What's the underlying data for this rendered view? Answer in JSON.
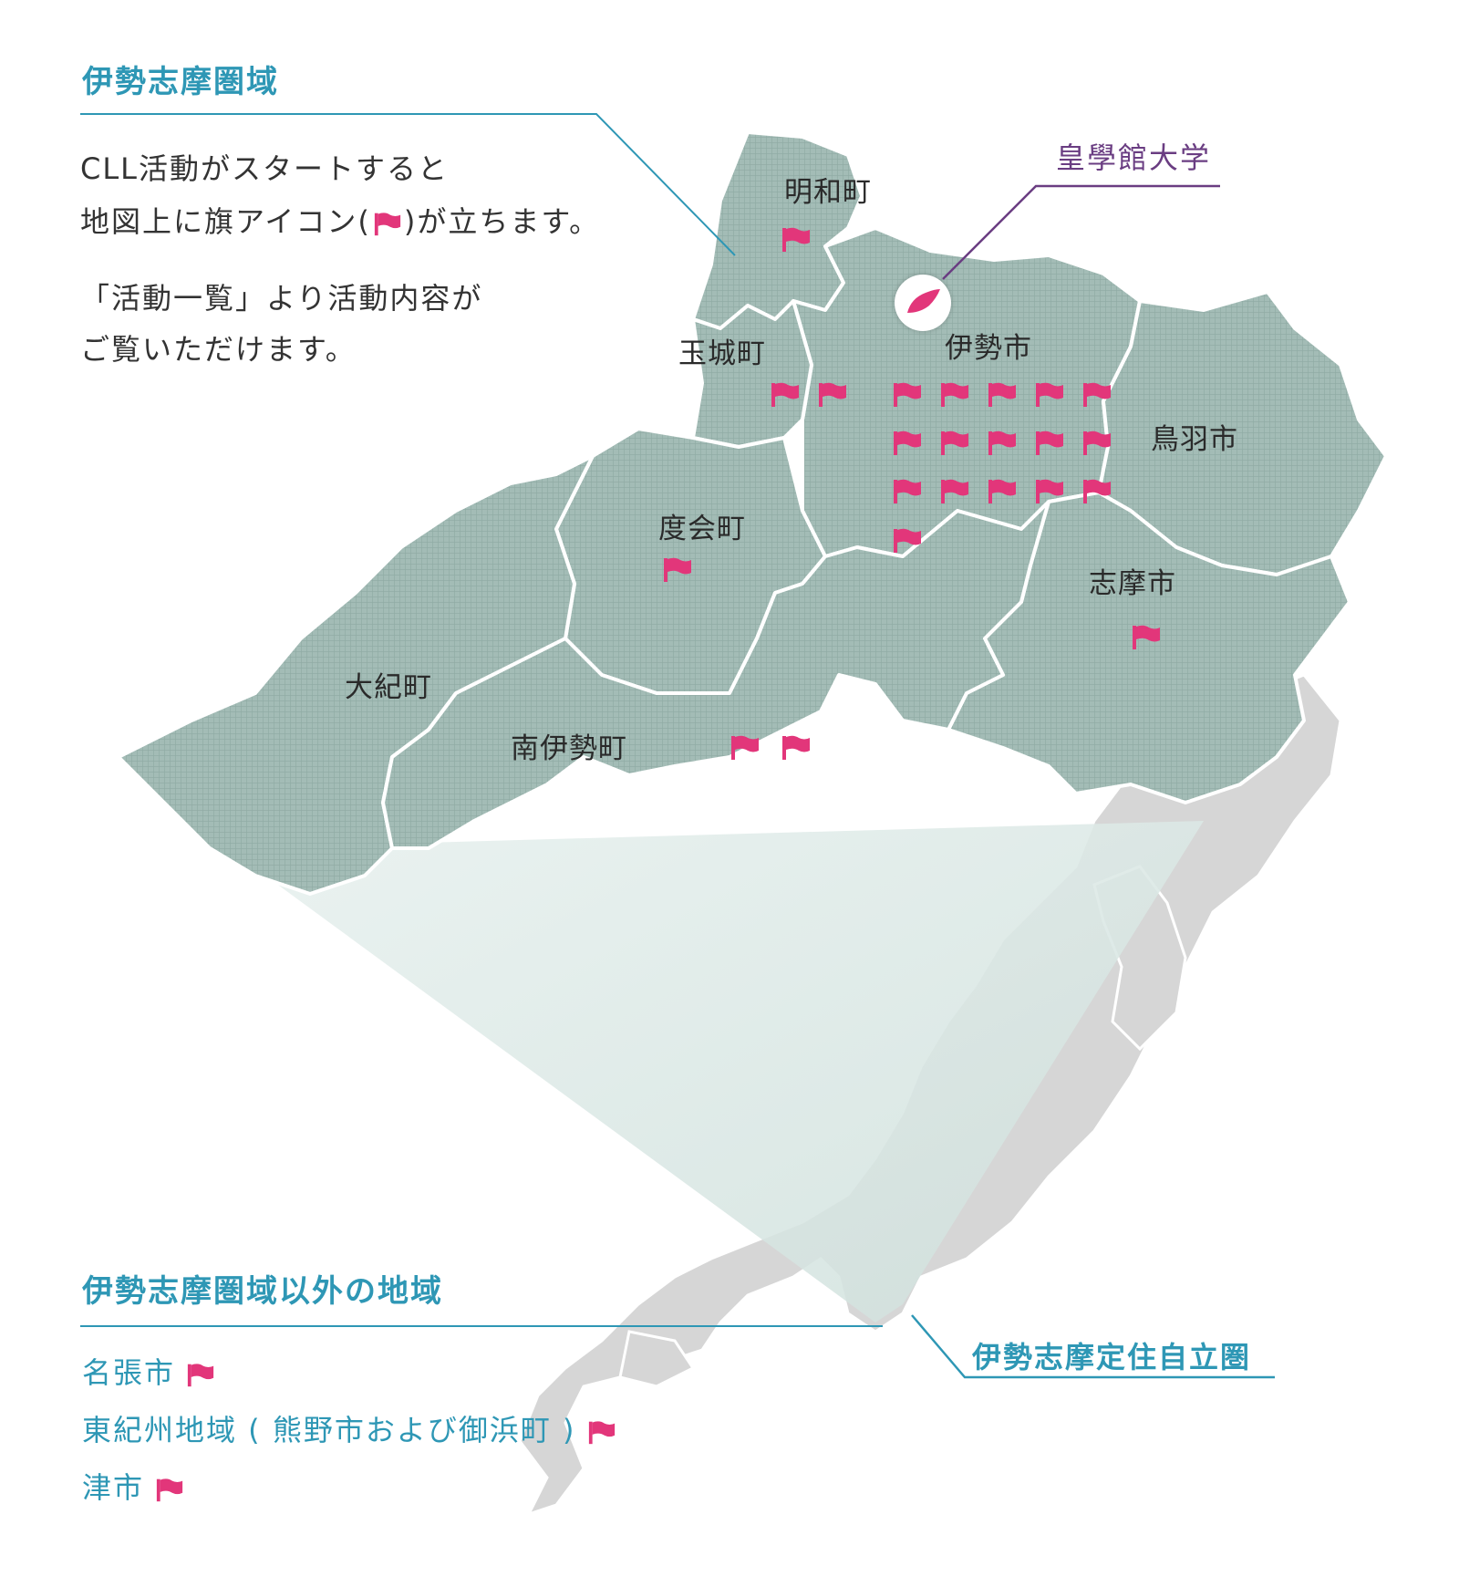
{
  "colors": {
    "accent": "#2e97b5",
    "university": "#6a3d82",
    "flag": "#e2367a",
    "region_fill": "#9fb8b3",
    "japan_fill": "#d9d9d9"
  },
  "header": {
    "title": "伊勢志摩圏域"
  },
  "description": {
    "line1": "CLL活動がスタートすると",
    "line2_before": "地図上に旗アイコン(",
    "line2_after": ")が立ちます。",
    "line3": "「活動一覧」より活動内容が",
    "line4": "ご覧いただけます。"
  },
  "university": {
    "name": "皇學館大学"
  },
  "regions": [
    {
      "name": "明和町",
      "flags": 1
    },
    {
      "name": "玉城町",
      "flags": 2
    },
    {
      "name": "伊勢市",
      "flags": 16
    },
    {
      "name": "鳥羽市",
      "flags": 0
    },
    {
      "name": "度会町",
      "flags": 1
    },
    {
      "name": "志摩市",
      "flags": 1
    },
    {
      "name": "大紀町",
      "flags": 0
    },
    {
      "name": "南伊勢町",
      "flags": 2
    }
  ],
  "outside": {
    "title": "伊勢志摩圏域以外の地域",
    "items": [
      {
        "label": "名張市"
      },
      {
        "label": "東紀州地域 ( 熊野市および御浜町 )"
      },
      {
        "label": "津市"
      }
    ]
  },
  "area_label": "伊勢志摩定住自立圏",
  "icons": {
    "flag": "flag-icon",
    "university": "university-pin-icon"
  }
}
